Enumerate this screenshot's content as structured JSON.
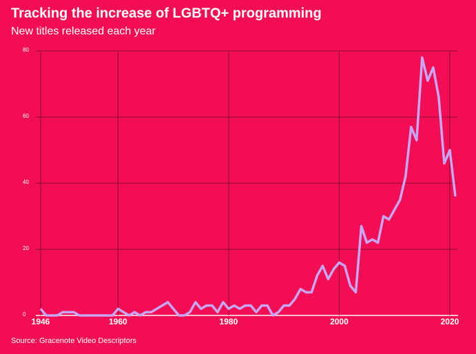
{
  "chart_data": {
    "type": "line",
    "title": "Tracking the increase of LGBTQ+ programming",
    "subtitle": "New titles released each year",
    "source": "Source: Gracenote Video Descriptors",
    "x": [
      1946,
      1947,
      1948,
      1949,
      1950,
      1951,
      1952,
      1953,
      1954,
      1955,
      1956,
      1957,
      1958,
      1959,
      1960,
      1961,
      1962,
      1963,
      1964,
      1965,
      1966,
      1967,
      1968,
      1969,
      1970,
      1971,
      1972,
      1973,
      1974,
      1975,
      1976,
      1977,
      1978,
      1979,
      1980,
      1981,
      1982,
      1983,
      1984,
      1985,
      1986,
      1987,
      1988,
      1989,
      1990,
      1991,
      1992,
      1993,
      1994,
      1995,
      1996,
      1997,
      1998,
      1999,
      2000,
      2001,
      2002,
      2003,
      2004,
      2005,
      2006,
      2007,
      2008,
      2009,
      2010,
      2011,
      2012,
      2013,
      2014,
      2015,
      2016,
      2017,
      2018,
      2019,
      2020,
      2021
    ],
    "series": [
      {
        "name": "New titles",
        "color": "#c9a6f5",
        "values": [
          2,
          0,
          0,
          0,
          1,
          1,
          1,
          0,
          0,
          0,
          0,
          0,
          0,
          0,
          2,
          1,
          0,
          1,
          0,
          1,
          1,
          2,
          3,
          4,
          2,
          0,
          0,
          1,
          4,
          2,
          3,
          3,
          1,
          4,
          2,
          3,
          2,
          3,
          3,
          1,
          3,
          3,
          0,
          1,
          3,
          3,
          5,
          8,
          7,
          7,
          12,
          15,
          11,
          14,
          16,
          15,
          9,
          7,
          27,
          22,
          23,
          22,
          30,
          29,
          32,
          35,
          42,
          57,
          53,
          78,
          71,
          75,
          66,
          46,
          50,
          36
        ]
      }
    ],
    "xlim": [
      1946,
      2021.5
    ],
    "xticks": [
      1946,
      1960,
      1980,
      2000,
      2020
    ],
    "ylim": [
      0,
      80
    ],
    "yticks": [
      0,
      20,
      40,
      60,
      80
    ],
    "grid": true
  }
}
